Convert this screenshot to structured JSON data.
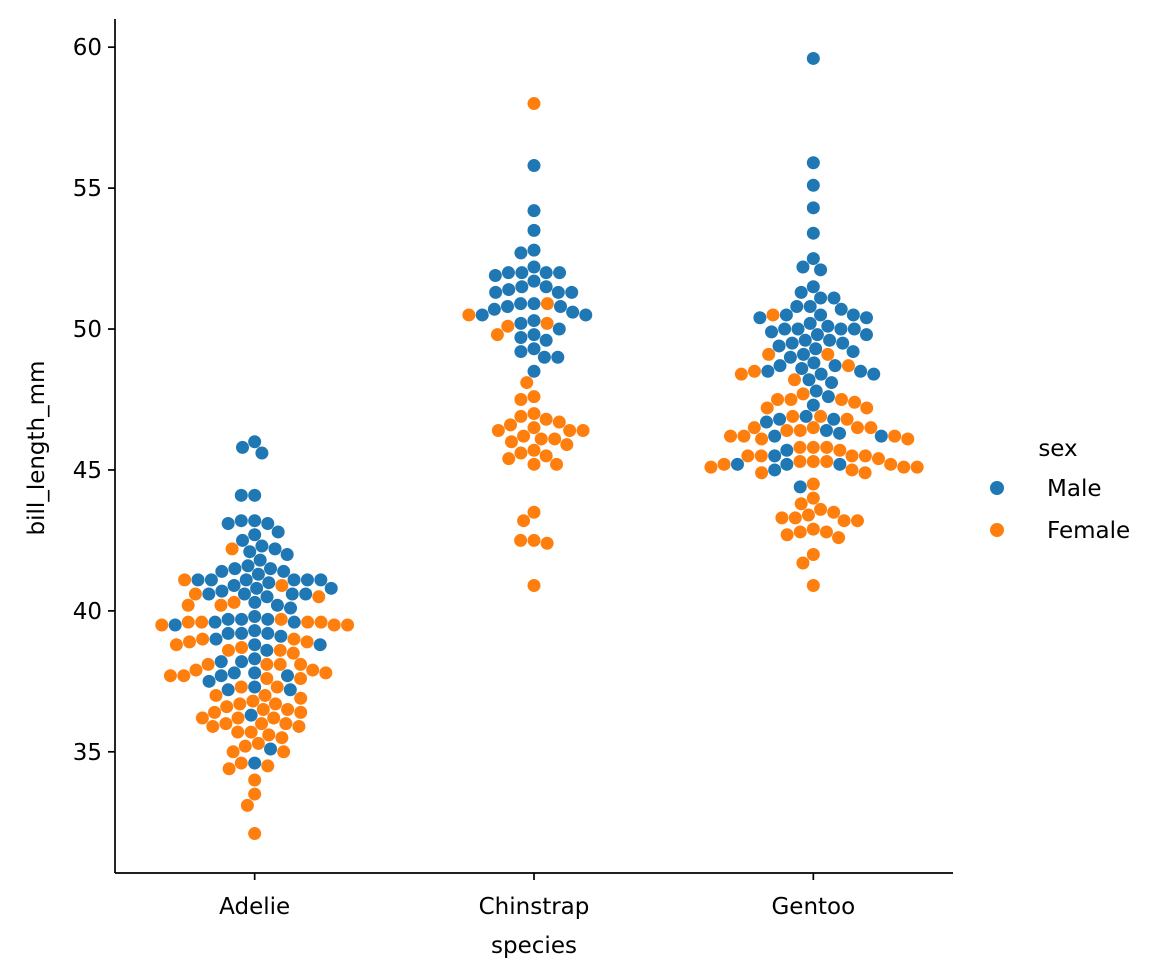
{
  "chart_data": {
    "type": "scatter",
    "subtype": "swarm",
    "xlabel": "species",
    "ylabel": "bill_length_mm",
    "categories": [
      "Adelie",
      "Chinstrap",
      "Gentoo"
    ],
    "y_ticks": [
      35,
      40,
      45,
      50,
      55,
      60
    ],
    "ylim": [
      30.7,
      61
    ],
    "grid": false,
    "legend": {
      "title": "sex",
      "placement": "right",
      "entries": [
        {
          "label": "Male",
          "color": "#1f77b4"
        },
        {
          "label": "Female",
          "color": "#ff7f0e"
        }
      ]
    },
    "series": [
      {
        "name": "Male",
        "color": "#1f77b4",
        "points": [
          {
            "category": "Adelie",
            "values": [
              46.0,
              45.8,
              45.6,
              44.1,
              44.1,
              43.2,
              43.2,
              43.1,
              43.1,
              42.8,
              42.7,
              42.5,
              42.3,
              42.2,
              42.1,
              42.0,
              41.8,
              41.6,
              41.5,
              41.5,
              41.4,
              41.4,
              41.3,
              41.1,
              41.1,
              41.1,
              41.1,
              41.1,
              41.1,
              41.0,
              40.9,
              40.8,
              40.8,
              40.7,
              40.6,
              40.6,
              40.6,
              40.6,
              40.5,
              40.3,
              40.2,
              40.1,
              39.8,
              39.7,
              39.7,
              39.7,
              39.6,
              39.6,
              39.5,
              39.3,
              39.2,
              39.2,
              39.2,
              39.1,
              39.0,
              38.8,
              38.8,
              38.6,
              38.3,
              38.2,
              38.2,
              37.8,
              37.8,
              37.7,
              37.7,
              37.5,
              37.3,
              37.2,
              37.2,
              36.3,
              35.1,
              34.6
            ]
          },
          {
            "category": "Chinstrap",
            "values": [
              55.8,
              54.2,
              53.5,
              52.8,
              52.7,
              52.2,
              52.0,
              52.0,
              52.0,
              52.0,
              51.9,
              51.7,
              51.5,
              51.5,
              51.4,
              51.3,
              51.3,
              51.3,
              50.9,
              50.9,
              50.8,
              50.8,
              50.7,
              50.6,
              50.5,
              50.5,
              50.3,
              50.2,
              50.0,
              49.8,
              49.7,
              49.6,
              49.3,
              49.2,
              49.0,
              49.0,
              48.5
            ]
          },
          {
            "category": "Gentoo",
            "values": [
              59.6,
              55.9,
              55.1,
              54.3,
              53.4,
              52.5,
              52.2,
              52.1,
              51.5,
              51.3,
              51.1,
              51.1,
              50.8,
              50.8,
              50.7,
              50.5,
              50.5,
              50.5,
              50.4,
              50.4,
              50.2,
              50.1,
              50.0,
              50.0,
              50.0,
              50.0,
              49.9,
              49.8,
              49.8,
              49.6,
              49.6,
              49.5,
              49.5,
              49.4,
              49.3,
              49.2,
              49.1,
              49.0,
              48.8,
              48.7,
              48.7,
              48.6,
              48.5,
              48.5,
              48.4,
              48.4,
              48.2,
              48.1,
              47.8,
              47.6,
              47.3,
              46.9,
              46.8,
              46.8,
              46.7,
              46.4,
              46.3,
              46.2,
              46.2,
              45.7,
              45.5,
              45.2,
              45.2,
              45.2,
              45.0,
              44.4
            ]
          }
        ]
      },
      {
        "name": "Female",
        "color": "#ff7f0e",
        "points": [
          {
            "category": "Adelie",
            "values": [
              42.2,
              41.1,
              40.9,
              40.6,
              40.5,
              40.3,
              40.2,
              40.2,
              39.7,
              39.6,
              39.6,
              39.6,
              39.6,
              39.5,
              39.5,
              39.5,
              39.0,
              39.0,
              38.9,
              38.9,
              38.8,
              38.7,
              38.6,
              38.6,
              38.5,
              38.1,
              38.1,
              38.1,
              38.1,
              37.9,
              37.9,
              37.8,
              37.7,
              37.7,
              37.6,
              37.6,
              37.3,
              37.3,
              37.0,
              37.0,
              36.9,
              36.8,
              36.7,
              36.7,
              36.6,
              36.5,
              36.5,
              36.4,
              36.4,
              36.2,
              36.2,
              36.2,
              36.0,
              36.0,
              36.0,
              35.9,
              35.9,
              35.7,
              35.7,
              35.6,
              35.5,
              35.3,
              35.2,
              35.0,
              35.0,
              34.6,
              34.5,
              34.4,
              34.0,
              33.5,
              33.1,
              32.1
            ]
          },
          {
            "category": "Chinstrap",
            "values": [
              58.0,
              50.9,
              50.5,
              50.2,
              50.1,
              49.8,
              48.1,
              47.6,
              47.5,
              47.0,
              46.9,
              46.8,
              46.7,
              46.6,
              46.5,
              46.4,
              46.4,
              46.4,
              46.2,
              46.1,
              46.1,
              46.0,
              45.9,
              45.7,
              45.6,
              45.5,
              45.4,
              45.2,
              45.2,
              43.5,
              43.2,
              42.5,
              42.5,
              42.4,
              40.9
            ]
          },
          {
            "category": "Gentoo",
            "values": [
              50.5,
              49.1,
              49.1,
              48.7,
              48.5,
              48.4,
              48.2,
              47.7,
              47.5,
              47.5,
              47.5,
              47.4,
              47.2,
              47.2,
              46.9,
              46.9,
              46.8,
              46.5,
              46.5,
              46.5,
              46.5,
              46.4,
              46.4,
              46.2,
              46.2,
              46.2,
              46.1,
              46.1,
              45.8,
              45.8,
              45.8,
              45.7,
              45.5,
              45.5,
              45.5,
              45.5,
              45.4,
              45.3,
              45.3,
              45.3,
              45.2,
              45.2,
              45.1,
              45.1,
              45.1,
              45.0,
              44.9,
              44.9,
              44.5,
              44.0,
              43.8,
              43.6,
              43.5,
              43.4,
              43.3,
              43.3,
              43.2,
              43.2,
              42.9,
              42.8,
              42.8,
              42.7,
              42.6,
              42.0,
              41.7,
              40.9
            ]
          }
        ]
      }
    ]
  }
}
